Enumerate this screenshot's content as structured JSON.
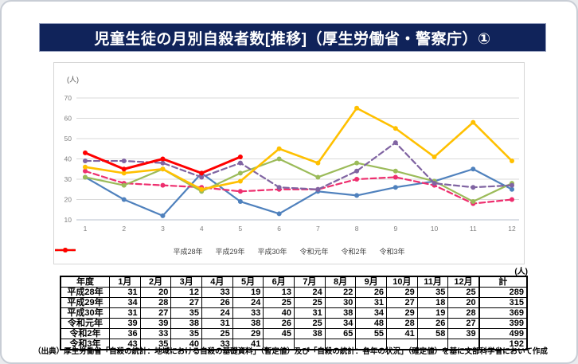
{
  "title_bar": {
    "title": "児童生徒の月別自殺者数[推移]（厚生労働省・警察庁）①"
  },
  "chart_data": {
    "type": "line",
    "unit_label": "(人)",
    "x": [
      1,
      2,
      3,
      4,
      5,
      6,
      7,
      8,
      9,
      10,
      11,
      12
    ],
    "ylim": [
      10,
      70
    ],
    "ytick_step": 10,
    "grid": true,
    "legend_position": "bottom",
    "axis_color": "#808080",
    "grid_color": "#d9d9d9",
    "series": [
      {
        "name": "平成28年",
        "color": "#4F81BD",
        "dash": false,
        "width": 2.2,
        "values": [
          31,
          20,
          12,
          33,
          19,
          13,
          24,
          22,
          26,
          29,
          35,
          25
        ]
      },
      {
        "name": "平成29年",
        "color": "#EE2E6E",
        "dash": true,
        "width": 2.2,
        "values": [
          34,
          28,
          27,
          26,
          24,
          25,
          25,
          30,
          31,
          27,
          18,
          20
        ]
      },
      {
        "name": "平成30年",
        "color": "#9BBB59",
        "dash": false,
        "width": 2.2,
        "values": [
          31,
          27,
          35,
          24,
          33,
          40,
          31,
          38,
          34,
          29,
          19,
          28
        ]
      },
      {
        "name": "令和元年",
        "color": "#8064A2",
        "dash": true,
        "width": 2.2,
        "values": [
          39,
          39,
          38,
          31,
          38,
          26,
          25,
          34,
          48,
          28,
          26,
          27
        ]
      },
      {
        "name": "令和2年",
        "color": "#FFC000",
        "dash": false,
        "width": 2.6,
        "values": [
          36,
          33,
          35,
          25,
          29,
          45,
          38,
          65,
          55,
          41,
          58,
          39
        ]
      },
      {
        "name": "令和3年",
        "color": "#FF0000",
        "dash": false,
        "width": 3,
        "values": [
          43,
          35,
          40,
          33,
          41,
          null,
          null,
          null,
          null,
          null,
          null,
          null
        ]
      }
    ]
  },
  "table": {
    "unit_label": "(人)",
    "headers": [
      "年度",
      "1月",
      "2月",
      "3月",
      "4月",
      "5月",
      "6月",
      "7月",
      "8月",
      "9月",
      "10月",
      "11月",
      "12月",
      "計"
    ],
    "rows": [
      {
        "label": "平成28年",
        "values": [
          31,
          20,
          12,
          33,
          19,
          13,
          24,
          22,
          26,
          29,
          35,
          25
        ],
        "total": 289
      },
      {
        "label": "平成29年",
        "values": [
          34,
          28,
          27,
          26,
          24,
          25,
          25,
          30,
          31,
          27,
          18,
          20
        ],
        "total": 315
      },
      {
        "label": "平成30年",
        "values": [
          31,
          27,
          35,
          24,
          33,
          40,
          31,
          38,
          34,
          29,
          19,
          28
        ],
        "total": 369
      },
      {
        "label": "令和元年",
        "values": [
          39,
          39,
          38,
          31,
          38,
          26,
          25,
          34,
          48,
          28,
          26,
          27
        ],
        "total": 399
      },
      {
        "label": "令和2年",
        "values": [
          36,
          33,
          35,
          25,
          29,
          45,
          38,
          65,
          55,
          41,
          58,
          39
        ],
        "total": 499
      },
      {
        "label": "令和3年",
        "values": [
          43,
          35,
          40,
          33,
          41,
          null,
          null,
          null,
          null,
          null,
          null,
          null
        ],
        "total": 192
      }
    ]
  },
  "source": "（出典）厚生労働省「自殺の統計：地域における自殺の基礎資料」（暫定値）及び「自殺の統計：各年の状況」（確定値）を基に文部科学省において作成"
}
